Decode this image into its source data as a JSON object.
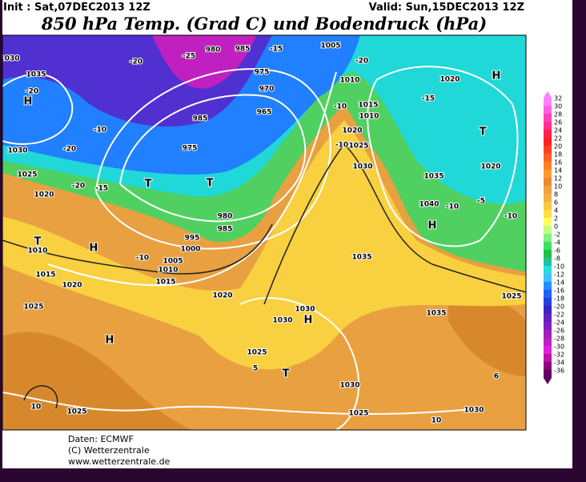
{
  "header": {
    "init": "Init : Sat,07DEC2013 12Z",
    "valid": "Valid: Sun,15DEC2013 12Z",
    "title": "850 hPa Temp. (Grad C) und Bodendruck (hPa)"
  },
  "map": {
    "labels": [
      "1030",
      "1035",
      "H",
      "-20",
      "-20",
      "-25",
      "980",
      "985",
      "-15",
      "1005",
      "-20",
      "1010",
      "1020",
      "H",
      "975",
      "970",
      "965",
      "985",
      "-10",
      "-10",
      "1015",
      "1010",
      "1020",
      "-15",
      "1030",
      "-20",
      "975",
      "-10",
      "1025",
      "T",
      "T",
      "T",
      "1025",
      "1020",
      "-20",
      "-15",
      "1030",
      "1035",
      "1020",
      "1040",
      "-10",
      "-5",
      "-10",
      "H",
      "980",
      "985",
      "995",
      "1000",
      "1005",
      "1010",
      "1015",
      "H",
      "T",
      "1010",
      "1015",
      "1020",
      "-10",
      "1020",
      "1025",
      "1030",
      "1030",
      "H",
      "1035",
      "1035",
      "1025",
      "H",
      "1025",
      "T",
      "1030",
      "1025",
      "1025",
      "1030",
      "10",
      "10",
      "6",
      "5"
    ]
  },
  "colorbar": {
    "ticks": [
      32,
      30,
      28,
      26,
      24,
      22,
      20,
      18,
      16,
      14,
      12,
      10,
      8,
      6,
      4,
      2,
      0,
      -2,
      -4,
      -6,
      -8,
      -10,
      -12,
      -14,
      -16,
      -18,
      -20,
      -22,
      -24,
      -26,
      -28,
      -30,
      -32,
      -34,
      -36
    ],
    "colors": [
      "#ff80ff",
      "#ff60e0",
      "#ff40c0",
      "#ff3090",
      "#ff2050",
      "#ff2020",
      "#ff4020",
      "#ff6020",
      "#ff8020",
      "#ff9a30",
      "#e88a30",
      "#f0a040",
      "#f4b040",
      "#f8c840",
      "#ffe040",
      "#ffff60",
      "#c0ff80",
      "#80f080",
      "#40e060",
      "#20c040",
      "#20c0a0",
      "#20e0e0",
      "#40c0ff",
      "#2090ff",
      "#2060ff",
      "#2040e0",
      "#4020c0",
      "#6020c0",
      "#8020c0",
      "#a020c0",
      "#c020c0",
      "#e020e0",
      "#c010a0",
      "#900080",
      "#600060"
    ]
  },
  "footer": {
    "lines": [
      "Daten: ECMWF",
      "(C) Wetterzentrale",
      "www.wetterzentrale.de"
    ]
  }
}
